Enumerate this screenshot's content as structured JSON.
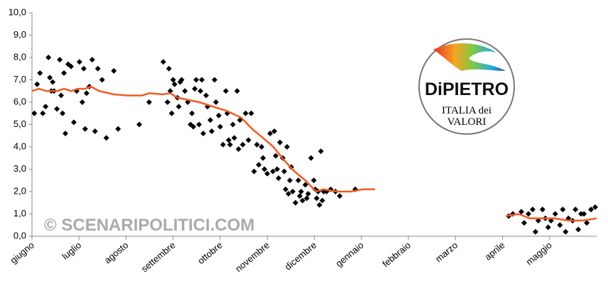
{
  "chart_data": {
    "type": "scatter",
    "categories": [
      "giugno",
      "luglio",
      "agosto",
      "settembre",
      "ottobre",
      "novembre",
      "dicembre",
      "gennaio",
      "febbraio",
      "marzo",
      "aprile",
      "maggio"
    ],
    "xlim": [
      0,
      12
    ],
    "ylim": [
      0,
      10
    ],
    "yticks": [
      {
        "value": 0,
        "label": "0,0"
      },
      {
        "value": 1,
        "label": "1,0"
      },
      {
        "value": 2,
        "label": "2,0"
      },
      {
        "value": 3,
        "label": "3,0"
      },
      {
        "value": 4,
        "label": "4,0"
      },
      {
        "value": 5,
        "label": "5,0"
      },
      {
        "value": 6,
        "label": "6,0"
      },
      {
        "value": 7,
        "label": "7,0"
      },
      {
        "value": 8,
        "label": "8,0"
      },
      {
        "value": 9,
        "label": "9,0"
      },
      {
        "value": 10,
        "label": "10,0"
      }
    ],
    "grid": false,
    "watermark": "© SCENARIPOLITICI.COM",
    "logo": {
      "brand": "DiPIETRO",
      "line1": "ITALIA dei",
      "line2": "VALORI"
    },
    "series": [
      {
        "type": "scatter",
        "color": "#000000",
        "x": [
          0.05,
          0.11,
          0.17,
          0.23,
          0.29,
          0.35,
          0.38,
          0.41,
          0.44,
          0.47,
          0.53,
          0.59,
          0.62,
          0.65,
          0.68,
          0.71,
          0.77,
          0.83,
          0.89,
          0.95,
          1.01,
          1.07,
          1.1,
          1.13,
          1.16,
          1.22,
          1.28,
          1.34,
          1.4,
          1.49,
          1.58,
          1.74,
          1.83,
          2.28,
          2.49,
          2.79,
          2.88,
          2.91,
          2.94,
          2.97,
          3.0,
          3.03,
          3.09,
          3.12,
          3.15,
          3.18,
          3.25,
          3.31,
          3.37,
          3.4,
          3.43,
          3.46,
          3.49,
          3.55,
          3.58,
          3.61,
          3.64,
          3.7,
          3.73,
          3.79,
          3.82,
          3.88,
          3.91,
          3.97,
          4.0,
          4.06,
          4.12,
          4.15,
          4.18,
          4.21,
          4.27,
          4.3,
          4.36,
          4.39,
          4.42,
          4.48,
          4.54,
          4.6,
          4.66,
          4.72,
          4.78,
          4.82,
          4.88,
          4.91,
          4.94,
          5.0,
          5.06,
          5.12,
          5.15,
          5.18,
          5.21,
          5.24,
          5.27,
          5.33,
          5.36,
          5.39,
          5.42,
          5.45,
          5.48,
          5.51,
          5.54,
          5.6,
          5.66,
          5.69,
          5.72,
          5.75,
          5.81,
          5.84,
          5.87,
          5.93,
          5.99,
          6.02,
          6.05,
          6.08,
          6.11,
          6.14,
          6.17,
          6.2,
          6.26,
          6.35,
          6.45,
          6.54,
          6.87,
          10.13,
          10.22,
          10.4,
          10.46,
          10.55,
          10.64,
          10.7,
          10.76,
          10.85,
          10.91,
          10.97,
          11.03,
          11.12,
          11.22,
          11.28,
          11.34,
          11.4,
          11.49,
          11.55,
          11.61,
          11.67,
          11.73,
          11.79,
          11.88,
          11.97
        ],
        "values": [
          5.5,
          6.8,
          7.3,
          5.5,
          5.8,
          8.0,
          7.1,
          6.5,
          6.9,
          6.5,
          5.7,
          7.9,
          6.3,
          5.5,
          7.3,
          4.6,
          7.7,
          7.6,
          5.1,
          6.5,
          7.8,
          6.0,
          7.5,
          4.8,
          6.4,
          6.7,
          7.9,
          4.7,
          7.5,
          7.0,
          4.4,
          7.4,
          4.8,
          5.0,
          6.0,
          7.8,
          6.0,
          7.5,
          6.5,
          5.5,
          7.0,
          6.8,
          6.2,
          5.8,
          6.9,
          7.0,
          6.5,
          6.0,
          5.0,
          5.5,
          4.9,
          6.6,
          7.0,
          5.0,
          6.5,
          7.0,
          4.6,
          6.3,
          5.8,
          5.2,
          4.7,
          7.0,
          6.0,
          5.4,
          4.9,
          4.1,
          6.5,
          5.5,
          4.3,
          4.1,
          5.0,
          4.4,
          6.5,
          3.9,
          5.2,
          4.1,
          5.5,
          4.3,
          5.5,
          2.9,
          4.1,
          3.2,
          4.0,
          3.5,
          3.0,
          2.8,
          4.6,
          2.9,
          4.7,
          3.6,
          3.0,
          2.6,
          4.2,
          3.5,
          2.9,
          2.1,
          4.0,
          1.9,
          2.5,
          3.1,
          2.0,
          1.5,
          2.5,
          1.8,
          2.0,
          1.6,
          2.3,
          1.7,
          1.9,
          3.5,
          2.5,
          2.1,
          1.7,
          2.0,
          1.4,
          3.8,
          1.6,
          2.0,
          2.0,
          2.1,
          2.0,
          1.8,
          2.1,
          0.9,
          1.0,
          1.1,
          0.6,
          1.0,
          1.2,
          0.2,
          0.7,
          1.2,
          0.8,
          0.4,
          0.7,
          1.0,
          0.5,
          1.2,
          0.2,
          0.8,
          0.7,
          1.2,
          0.3,
          1.0,
          1.0,
          0.6,
          1.2,
          1.3
        ]
      },
      {
        "type": "line",
        "color": "#f15a24",
        "x": [
          0.0,
          0.15,
          0.3,
          0.53,
          0.68,
          0.83,
          0.98,
          1.13,
          1.25,
          1.43,
          1.74,
          2.04,
          2.34,
          2.49,
          2.79,
          2.94,
          3.09,
          3.32,
          3.55,
          3.85,
          4.15,
          4.45,
          4.68,
          4.91,
          5.13,
          5.36,
          5.58,
          5.81,
          6.04,
          6.19,
          6.49,
          6.79,
          7.02,
          7.29,
          null,
          10.07,
          10.34,
          10.57,
          10.79,
          11.09,
          11.4,
          11.7,
          12.0
        ],
        "values": [
          6.5,
          6.6,
          6.5,
          6.5,
          6.6,
          6.5,
          6.6,
          6.6,
          6.7,
          6.5,
          6.35,
          6.3,
          6.3,
          6.4,
          6.35,
          6.4,
          6.2,
          6.1,
          6.0,
          5.8,
          5.6,
          5.3,
          4.8,
          4.4,
          4.0,
          3.4,
          2.9,
          2.5,
          2.0,
          2.1,
          2.0,
          2.0,
          2.1,
          2.1,
          null,
          0.9,
          1.0,
          0.8,
          0.8,
          0.8,
          0.7,
          0.7,
          0.8
        ]
      }
    ]
  }
}
